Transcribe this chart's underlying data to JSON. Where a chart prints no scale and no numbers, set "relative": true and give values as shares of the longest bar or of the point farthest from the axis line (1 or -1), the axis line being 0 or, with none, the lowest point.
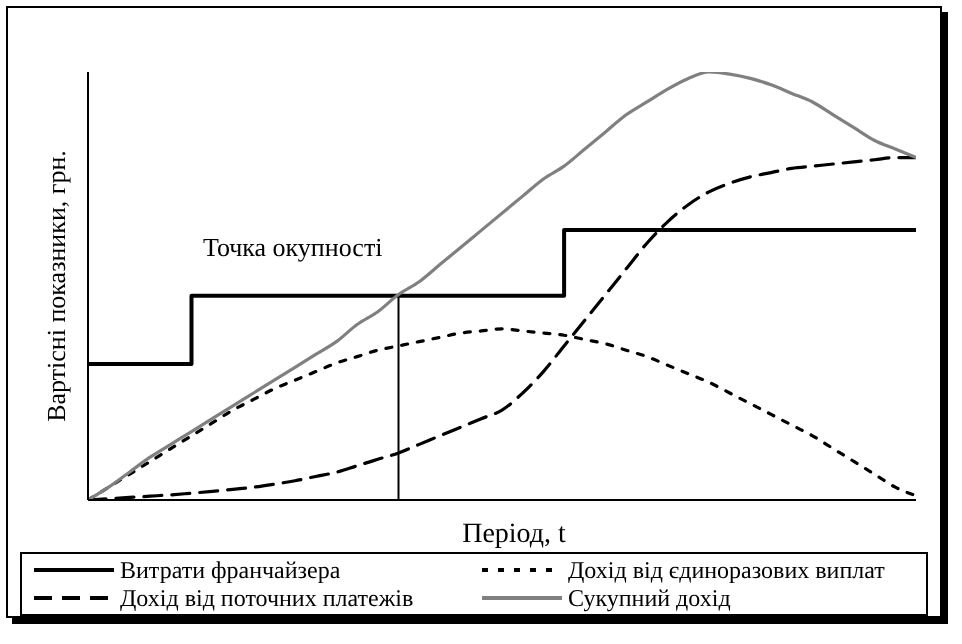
{
  "chart_data": {
    "type": "line",
    "relative": true,
    "xlabel": "Період, t",
    "ylabel": "Вартісні показники, грн.",
    "categories": [
      null,
      null,
      null,
      null,
      null,
      null,
      null,
      null,
      null,
      null,
      null,
      null,
      null,
      null,
      null,
      null,
      null,
      null,
      null,
      null,
      null,
      null,
      null,
      null,
      null,
      null,
      null,
      null,
      null,
      null,
      null,
      null,
      null,
      null,
      null,
      null,
      null,
      null,
      null,
      null,
      null
    ],
    "series": [
      {
        "name": "Витрати франчайзера",
        "type": "step",
        "color": "#000000",
        "line_style": "solid",
        "values": [
          0.318,
          0.318,
          0.318,
          0.318,
          0.318,
          0.477,
          0.477,
          0.477,
          0.477,
          0.477,
          0.477,
          0.477,
          0.477,
          0.477,
          0.477,
          0.477,
          0.477,
          0.477,
          0.477,
          0.477,
          0.477,
          0.477,
          0.477,
          0.631,
          0.631,
          0.631,
          0.631,
          0.631,
          0.631,
          0.631,
          0.631,
          0.631,
          0.631,
          0.631,
          0.631,
          0.631,
          0.631,
          0.631,
          0.631,
          0.631,
          0.631
        ]
      },
      {
        "name": "Дохід від єдиноразових виплат",
        "type": "line",
        "color": "#000000",
        "line_style": "dotted",
        "values": [
          0,
          0.03,
          0.06,
          0.09,
          0.12,
          0.15,
          0.18,
          0.21,
          0.235,
          0.26,
          0.28,
          0.3,
          0.32,
          0.335,
          0.35,
          0.36,
          0.37,
          0.38,
          0.39,
          0.395,
          0.4,
          0.395,
          0.39,
          0.385,
          0.375,
          0.365,
          0.35,
          0.335,
          0.315,
          0.295,
          0.275,
          0.25,
          0.225,
          0.2,
          0.175,
          0.15,
          0.12,
          0.09,
          0.06,
          0.03,
          0.01
        ]
      },
      {
        "name": "Дохід від поточних платежів",
        "type": "line",
        "color": "#000000",
        "line_style": "dashed",
        "values": [
          0,
          0.003,
          0.006,
          0.009,
          0.012,
          0.016,
          0.02,
          0.025,
          0.03,
          0.037,
          0.045,
          0.055,
          0.065,
          0.08,
          0.095,
          0.11,
          0.13,
          0.15,
          0.17,
          0.19,
          0.21,
          0.25,
          0.3,
          0.36,
          0.42,
          0.48,
          0.54,
          0.6,
          0.65,
          0.69,
          0.72,
          0.74,
          0.755,
          0.765,
          0.775,
          0.78,
          0.785,
          0.79,
          0.795,
          0.8,
          0.8
        ]
      },
      {
        "name": "Сукупний дохід",
        "type": "line",
        "color": "#808080",
        "line_style": "solid",
        "values": [
          0,
          0.03,
          0.065,
          0.1,
          0.13,
          0.16,
          0.19,
          0.22,
          0.25,
          0.28,
          0.31,
          0.34,
          0.37,
          0.41,
          0.44,
          0.48,
          0.51,
          0.55,
          0.59,
          0.63,
          0.67,
          0.71,
          0.75,
          0.78,
          0.82,
          0.86,
          0.9,
          0.93,
          0.96,
          0.985,
          1,
          0.995,
          0.985,
          0.97,
          0.95,
          0.93,
          0.9,
          0.87,
          0.84,
          0.82,
          0.8
        ]
      }
    ],
    "annotations": [
      "Точка окупності"
    ],
    "grid": false,
    "legend": "bottom",
    "marker": "none"
  }
}
